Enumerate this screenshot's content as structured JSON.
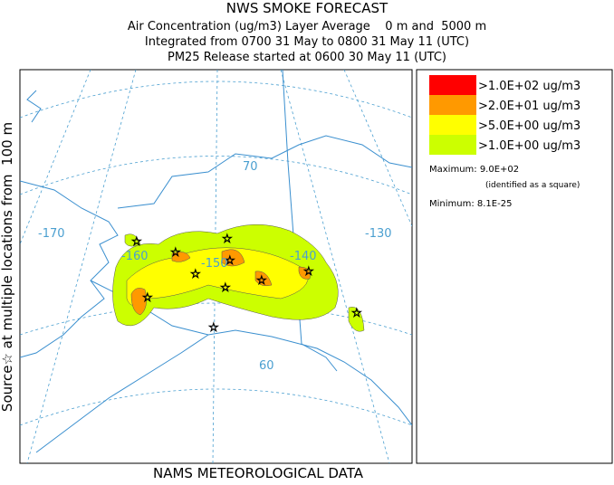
{
  "header": {
    "title": "NWS SMOKE FORECAST",
    "lines": [
      "Air Concentration (ug/m3) Layer Average    0 m and  5000 m",
      "Integrated from 0700 31 May to 0800 31 May 11 (UTC)",
      "PM25 Release started at 0600 30 May 11 (UTC)"
    ]
  },
  "side_label": "Source☆ at multiple locations from  100 m",
  "footer": "NAMS METEOROLOGICAL DATA",
  "legend": {
    "entries": [
      {
        "label": ">1.0E+02 ug/m3",
        "color": "#ff0000"
      },
      {
        "label": ">2.0E+01 ug/m3",
        "color": "#ff9900"
      },
      {
        "label": ">5.0E+00 ug/m3",
        "color": "#ffff00"
      },
      {
        "label": ">1.0E+00 ug/m3",
        "color": "#ccff00"
      }
    ],
    "maximum": "Maximum: 9.0E+02",
    "max_note": "(identified as a square)",
    "minimum": "Minimum: 8.1E-25"
  },
  "map": {
    "longitude_labels": [
      "-170",
      "-160",
      "-150",
      "-140",
      "-130"
    ],
    "latitude_labels": [
      "70",
      "60"
    ]
  }
}
